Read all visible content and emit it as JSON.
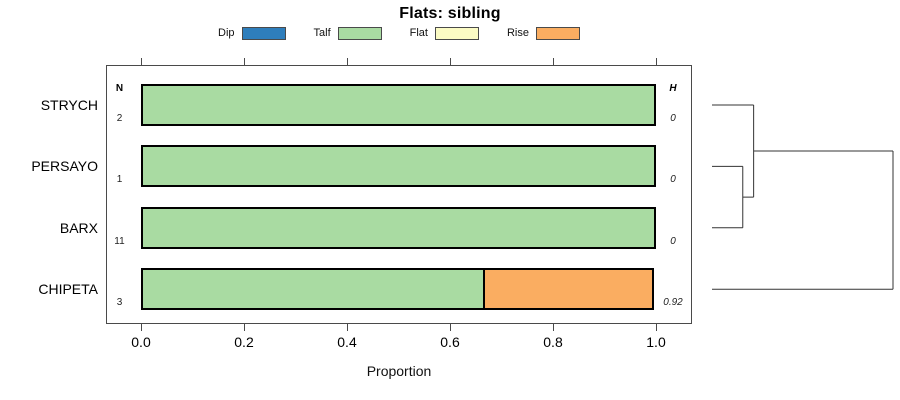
{
  "chart_data": {
    "type": "bar",
    "orientation": "horizontal_stacked",
    "title": "Flats: sibling",
    "xlabel": "Proportion",
    "xlim": [
      0,
      1
    ],
    "xticks": [
      "0.0",
      "0.2",
      "0.4",
      "0.6",
      "0.8",
      "1.0"
    ],
    "grid": false,
    "legend_position": "top-center",
    "legend": [
      {
        "label": "Dip",
        "color": "#2E7EBC"
      },
      {
        "label": "Talf",
        "color": "#A9DBA2"
      },
      {
        "label": "Flat",
        "color": "#FBFBC4"
      },
      {
        "label": "Rise",
        "color": "#FAAD61"
      }
    ],
    "columns": {
      "n_header": "N",
      "h_header": "H"
    },
    "rows": [
      {
        "label": "STRYCH",
        "n": "2",
        "h": "0",
        "segments": [
          {
            "category": "Talf",
            "value": 1.0
          }
        ]
      },
      {
        "label": "PERSAYO",
        "n": "1",
        "h": "0",
        "segments": [
          {
            "category": "Talf",
            "value": 1.0
          }
        ]
      },
      {
        "label": "BARX",
        "n": "11",
        "h": "0",
        "segments": [
          {
            "category": "Talf",
            "value": 1.0
          }
        ]
      },
      {
        "label": "CHIPETA",
        "n": "3",
        "h": "0.92",
        "segments": [
          {
            "category": "Talf",
            "value": 0.667
          },
          {
            "category": "Rise",
            "value": 0.333
          }
        ]
      }
    ],
    "dendrogram": {
      "leaves": [
        "STRYCH",
        "PERSAYO",
        "BARX",
        "CHIPETA"
      ],
      "merges": [
        {
          "a": "PERSAYO",
          "b": "BARX",
          "height": 0.17
        },
        {
          "a": "STRYCH",
          "b": "PERSAYO+BARX",
          "height": 0.23
        },
        {
          "a": "STRYCH+PERSAYO+BARX",
          "b": "CHIPETA",
          "height": 1.0
        }
      ]
    }
  }
}
